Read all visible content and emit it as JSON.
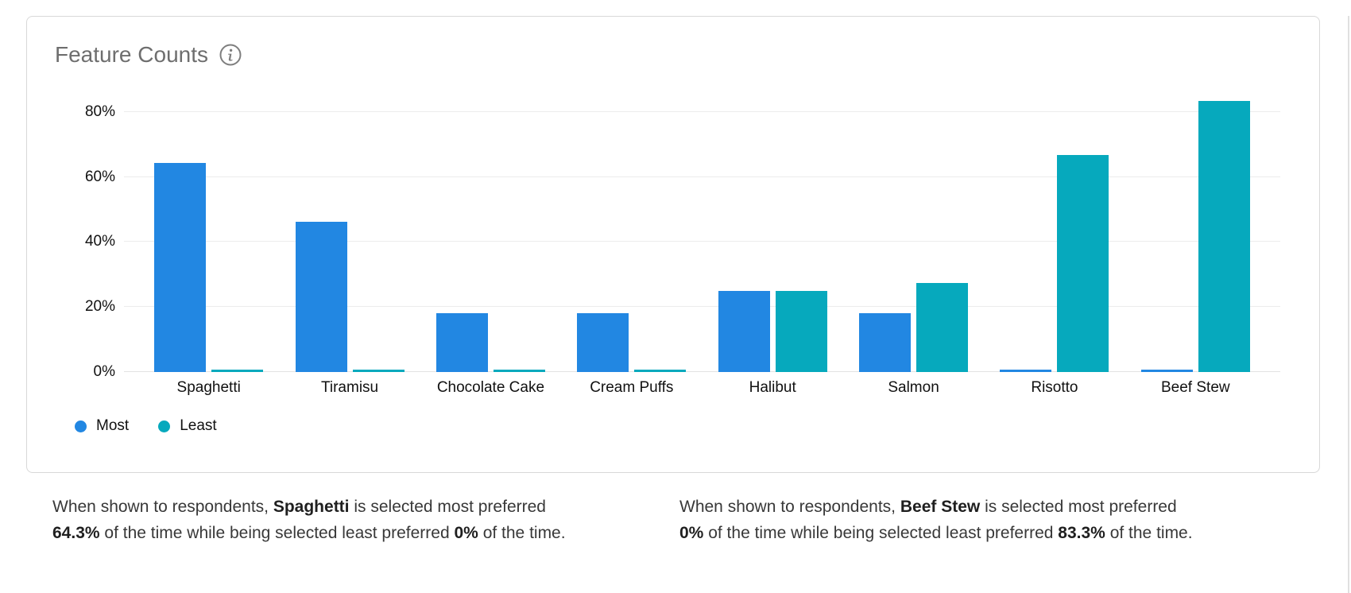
{
  "card": {
    "title": "Feature Counts"
  },
  "chart_data": {
    "type": "bar",
    "title": "Feature Counts",
    "categories": [
      "Spaghetti",
      "Tiramisu",
      "Chocolate Cake",
      "Cream Puffs",
      "Halibut",
      "Salmon",
      "Risotto",
      "Beef Stew"
    ],
    "series": [
      {
        "name": "Most",
        "color": "#2287e2",
        "values": [
          64.3,
          46.2,
          18.2,
          18.2,
          25.0,
          18.2,
          0,
          0
        ]
      },
      {
        "name": "Least",
        "color": "#06a9bd",
        "values": [
          0,
          0,
          0,
          0,
          25.0,
          27.3,
          66.7,
          83.3
        ]
      }
    ],
    "y_ticks": [
      {
        "value": 0,
        "label": "0%"
      },
      {
        "value": 20,
        "label": "20%"
      },
      {
        "value": 40,
        "label": "40%"
      },
      {
        "value": 60,
        "label": "60%"
      },
      {
        "value": 80,
        "label": "80%"
      }
    ],
    "ylim": [
      0,
      90
    ],
    "grid": true,
    "legend": {
      "position": "bottom-left",
      "items": [
        {
          "label": "Most",
          "color": "#2287e2"
        },
        {
          "label": "Least",
          "color": "#06a9bd"
        }
      ]
    }
  },
  "insights": [
    {
      "intro": "When shown to respondents,",
      "item": "Spaghetti",
      "line1_rest": "is selected most preferred",
      "most_pct": "64.3%",
      "line2_mid": "of the time while being selected least preferred",
      "least_pct": "0%",
      "outro": "of the time."
    },
    {
      "intro": "When shown to respondents,",
      "item": "Beef Stew",
      "line1_rest": "is selected most preferred",
      "most_pct": "0%",
      "line2_mid": "of the time while being selected least preferred",
      "least_pct": "83.3%",
      "outro": "of the time."
    }
  ]
}
